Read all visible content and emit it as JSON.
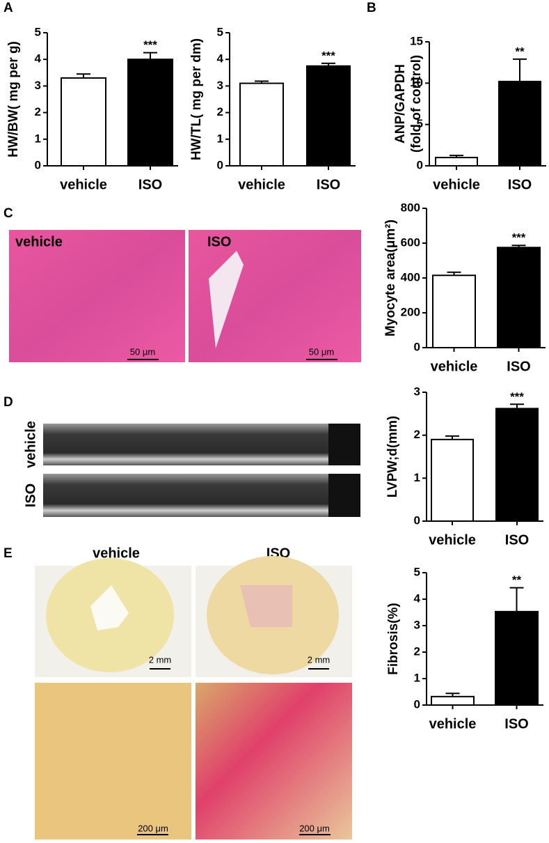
{
  "chart_data": [
    {
      "type": "bar",
      "ylabel": [
        "HW/BW( mg per g)"
      ],
      "categories": [
        "vehicle",
        "ISO"
      ],
      "values": [
        3.3,
        4.0
      ],
      "errors": [
        0.15,
        0.25
      ],
      "colors": [
        "#ffffff",
        "#000000"
      ],
      "significance": "***",
      "ylim": [
        0,
        5
      ],
      "yticks": [
        0,
        1,
        2,
        3,
        4,
        5
      ]
    },
    {
      "type": "bar",
      "ylabel": [
        "HW/TL( mg per dm)"
      ],
      "categories": [
        "vehicle",
        "ISO"
      ],
      "values": [
        3.1,
        3.75
      ],
      "errors": [
        0.08,
        0.1
      ],
      "colors": [
        "#ffffff",
        "#000000"
      ],
      "significance": "***",
      "ylim": [
        0,
        5
      ],
      "yticks": [
        0,
        1,
        2,
        3,
        4,
        5
      ]
    },
    {
      "type": "bar",
      "ylabel": [
        "ANP/GAPDH",
        "(fold of control)"
      ],
      "categories": [
        "vehicle",
        "ISO"
      ],
      "values": [
        1.0,
        10.2
      ],
      "errors": [
        0.25,
        2.7
      ],
      "colors": [
        "#ffffff",
        "#000000"
      ],
      "significance": "**",
      "ylim": [
        0,
        15
      ],
      "yticks": [
        0,
        5,
        10,
        15
      ]
    },
    {
      "type": "bar",
      "ylabel": [
        "Myocyte area(μm²)"
      ],
      "categories": [
        "vehicle",
        "ISO"
      ],
      "values": [
        415,
        575
      ],
      "errors": [
        18,
        12
      ],
      "colors": [
        "#ffffff",
        "#000000"
      ],
      "significance": "***",
      "ylim": [
        0,
        800
      ],
      "yticks": [
        0,
        200,
        400,
        600,
        800
      ]
    },
    {
      "type": "bar",
      "ylabel": [
        "LVPW;d(mm)"
      ],
      "categories": [
        "vehicle",
        "ISO"
      ],
      "values": [
        1.9,
        2.62
      ],
      "errors": [
        0.08,
        0.1
      ],
      "colors": [
        "#ffffff",
        "#000000"
      ],
      "significance": "***",
      "ylim": [
        0,
        3
      ],
      "yticks": [
        0,
        1,
        2,
        3
      ]
    },
    {
      "type": "bar",
      "ylabel": [
        "Fibrosis(%)"
      ],
      "categories": [
        "vehicle",
        "ISO"
      ],
      "values": [
        0.32,
        3.53
      ],
      "errors": [
        0.12,
        0.9
      ],
      "colors": [
        "#ffffff",
        "#000000"
      ],
      "significance": "**",
      "ylim": [
        0,
        5
      ],
      "yticks": [
        0,
        1,
        2,
        3,
        4,
        5
      ]
    }
  ],
  "figure": {
    "panel_letters": [
      "A",
      "B",
      "C",
      "D",
      "E"
    ],
    "he_labels": [
      "vehicle",
      "ISO"
    ],
    "he_scale": "50 μm",
    "echo_labels": [
      "vehicle",
      "ISO"
    ],
    "sirius_headers": [
      "vehicle",
      "ISO"
    ],
    "sirius_scale_low": "2 mm",
    "sirius_scale_high": "200 μm"
  }
}
